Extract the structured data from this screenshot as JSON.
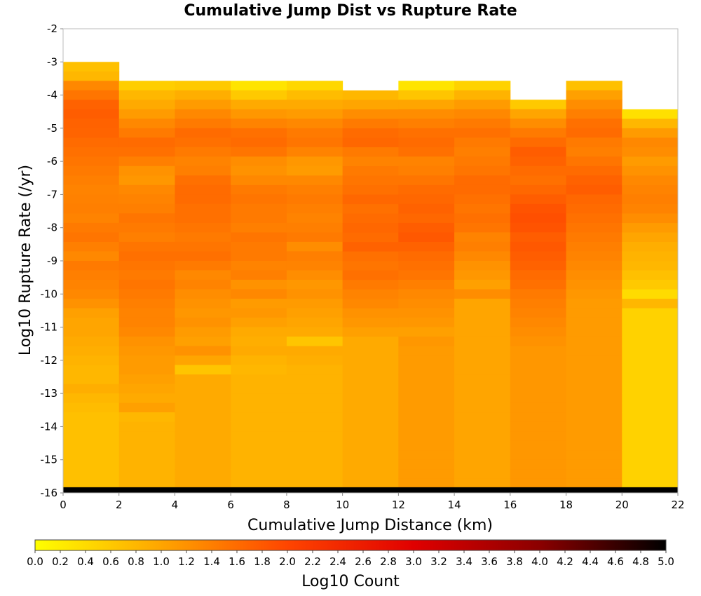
{
  "chart_data": {
    "type": "heatmap",
    "title": "Cumulative Jump Dist vs Rupture Rate",
    "xlabel": "Cumulative Jump Distance (km)",
    "ylabel": "Log10 Rupture Rate (/yr)",
    "colorbar_label": "Log10 Count",
    "xlim": [
      0,
      22
    ],
    "ylim": [
      -16,
      -2
    ],
    "x_bin_width": 2,
    "y_bin_width": 0.2857,
    "x_ticks": [
      "0",
      "2",
      "4",
      "6",
      "8",
      "10",
      "12",
      "14",
      "16",
      "18",
      "20",
      "22"
    ],
    "y_ticks": [
      "-2",
      "-3",
      "-4",
      "-5",
      "-6",
      "-7",
      "-8",
      "-9",
      "-10",
      "-11",
      "-12",
      "-13",
      "-14",
      "-15",
      "-16"
    ],
    "colorbar_ticks": [
      "0.0",
      "0.2",
      "0.4",
      "0.6",
      "0.8",
      "1.0",
      "1.2",
      "1.4",
      "1.6",
      "1.8",
      "2.0",
      "2.2",
      "2.4",
      "2.6",
      "2.8",
      "3.0",
      "3.2",
      "3.4",
      "3.6",
      "3.8",
      "4.0",
      "4.2",
      "4.4",
      "4.6",
      "4.8",
      "5.0"
    ],
    "colorbar_range": [
      0,
      5
    ],
    "colorscale": [
      "#ffff00",
      "#ffa500",
      "#ff4500",
      "#e00000",
      "#8b0000",
      "#000000"
    ],
    "grid": true,
    "columns": [
      {
        "x_start": 0,
        "top": -3.0,
        "values": [
          0.7,
          0.8,
          1.3,
          1.5,
          1.7,
          1.75,
          1.7,
          1.68,
          1.6,
          1.55,
          1.5,
          1.45,
          1.4,
          1.35,
          1.38,
          1.4,
          1.35,
          1.45,
          1.5,
          1.4,
          1.3,
          1.45,
          1.4,
          1.35,
          1.3,
          1.2,
          1.05,
          1.0,
          1.0,
          0.95,
          0.9,
          0.85,
          0.8,
          0.8,
          0.9,
          0.8,
          0.75,
          0.7,
          0.7,
          0.7,
          0.7,
          0.7,
          0.7,
          0.7,
          0.7,
          0.7
        ]
      },
      {
        "x_start": 2,
        "top": -3.57,
        "values": [
          0.55,
          0.8,
          0.95,
          1.1,
          1.3,
          1.45,
          1.6,
          1.55,
          1.4,
          1.2,
          1.15,
          1.3,
          1.35,
          1.4,
          1.5,
          1.45,
          1.4,
          1.5,
          1.55,
          1.5,
          1.45,
          1.5,
          1.45,
          1.4,
          1.35,
          1.35,
          1.3,
          1.2,
          1.15,
          1.1,
          1.1,
          1.05,
          1.0,
          0.95,
          1.05,
          0.8,
          0.85,
          0.85,
          0.85,
          0.85,
          0.85,
          0.85,
          0.85,
          0.85,
          0.85,
          0.85
        ]
      },
      {
        "x_start": 4,
        "top": -3.57,
        "values": [
          0.6,
          0.9,
          1.1,
          1.3,
          1.45,
          1.6,
          1.55,
          1.45,
          1.35,
          1.4,
          1.55,
          1.6,
          1.6,
          1.55,
          1.55,
          1.5,
          1.45,
          1.5,
          1.55,
          1.45,
          1.3,
          1.35,
          1.25,
          1.2,
          1.15,
          1.2,
          1.1,
          1.05,
          1.2,
          1.0,
          0.65,
          0.95,
          0.95,
          0.95,
          0.95,
          0.95,
          0.95,
          0.95,
          0.95,
          0.95,
          0.95,
          0.95,
          0.95,
          0.95,
          0.95,
          0.95
        ]
      },
      {
        "x_start": 6,
        "top": -3.57,
        "values": [
          0.3,
          0.6,
          0.95,
          1.15,
          1.35,
          1.55,
          1.6,
          1.5,
          1.25,
          1.2,
          1.3,
          1.45,
          1.5,
          1.45,
          1.45,
          1.4,
          1.5,
          1.45,
          1.45,
          1.35,
          1.4,
          1.2,
          1.3,
          1.1,
          1.15,
          1.05,
          0.95,
          0.9,
          0.95,
          0.85,
          0.8,
          0.85,
          0.85,
          0.85,
          0.85,
          0.85,
          0.85,
          0.85,
          0.85,
          0.85,
          0.85,
          0.85,
          0.85,
          0.85,
          0.85,
          0.85
        ]
      },
      {
        "x_start": 8,
        "top": -3.57,
        "values": [
          0.45,
          0.75,
          0.95,
          1.1,
          1.3,
          1.45,
          1.5,
          1.35,
          1.15,
          1.1,
          1.3,
          1.4,
          1.45,
          1.4,
          1.35,
          1.4,
          1.45,
          1.25,
          1.4,
          1.35,
          1.25,
          1.15,
          1.2,
          1.1,
          1.05,
          1.0,
          0.95,
          0.65,
          0.95,
          0.9,
          0.85,
          0.85,
          0.85,
          0.85,
          0.85,
          0.85,
          0.85,
          0.85,
          0.85,
          0.85,
          0.85,
          0.85,
          0.85,
          0.85,
          0.85,
          0.85
        ]
      },
      {
        "x_start": 10,
        "top": -3.86,
        "values": [
          0.8,
          1.0,
          1.25,
          1.45,
          1.6,
          1.65,
          1.45,
          1.35,
          1.45,
          1.5,
          1.55,
          1.65,
          1.55,
          1.6,
          1.65,
          1.6,
          1.7,
          1.55,
          1.5,
          1.55,
          1.45,
          1.35,
          1.3,
          1.2,
          1.15,
          1.05,
          0.95,
          0.95,
          0.95,
          0.95,
          0.95,
          0.95,
          0.95,
          0.95,
          0.95,
          0.95,
          0.95,
          0.95,
          0.95,
          0.95,
          0.95,
          0.95,
          0.95,
          0.95,
          0.95,
          0.95
        ]
      },
      {
        "x_start": 12,
        "top": -3.57,
        "values": [
          0.3,
          0.65,
          1.0,
          1.25,
          1.4,
          1.55,
          1.6,
          1.55,
          1.35,
          1.4,
          1.5,
          1.6,
          1.65,
          1.7,
          1.65,
          1.75,
          1.8,
          1.7,
          1.6,
          1.55,
          1.5,
          1.4,
          1.3,
          1.25,
          1.2,
          1.15,
          1.05,
          1.15,
          1.1,
          1.1,
          1.1,
          1.1,
          1.1,
          1.1,
          1.1,
          1.1,
          1.1,
          1.1,
          1.1,
          1.1,
          1.1,
          1.1,
          1.1,
          1.1,
          1.1,
          1.1
        ]
      },
      {
        "x_start": 14,
        "top": -3.57,
        "values": [
          0.5,
          0.85,
          1.1,
          1.3,
          1.45,
          1.55,
          1.45,
          1.4,
          1.45,
          1.5,
          1.6,
          1.6,
          1.55,
          1.5,
          1.55,
          1.5,
          1.35,
          1.4,
          1.3,
          1.2,
          1.15,
          1.05,
          1.25,
          1.0,
          1.0,
          1.0,
          1.0,
          1.0,
          1.0,
          1.0,
          1.0,
          1.0,
          1.0,
          1.0,
          1.0,
          1.0,
          1.0,
          1.0,
          1.0,
          1.0,
          1.0,
          1.0,
          1.0,
          1.0,
          1.0,
          1.0
        ]
      },
      {
        "x_start": 16,
        "top": -4.14,
        "values": [
          0.6,
          1.0,
          1.25,
          1.45,
          1.6,
          1.75,
          1.7,
          1.6,
          1.55,
          1.65,
          1.75,
          1.85,
          1.9,
          1.85,
          1.75,
          1.8,
          1.75,
          1.7,
          1.6,
          1.55,
          1.45,
          1.4,
          1.35,
          1.3,
          1.25,
          1.2,
          1.15,
          1.15,
          1.15,
          1.15,
          1.15,
          1.15,
          1.15,
          1.15,
          1.15,
          1.15,
          1.15,
          1.15,
          1.15,
          1.15,
          1.15,
          1.15,
          1.15,
          1.15,
          1.15,
          1.15
        ]
      },
      {
        "x_start": 18,
        "top": -3.57,
        "values": [
          0.7,
          1.05,
          1.25,
          1.4,
          1.55,
          1.6,
          1.45,
          1.4,
          1.5,
          1.6,
          1.7,
          1.75,
          1.65,
          1.6,
          1.55,
          1.5,
          1.45,
          1.4,
          1.35,
          1.3,
          1.25,
          1.2,
          1.15,
          1.1,
          1.1,
          1.1,
          1.1,
          1.1,
          1.1,
          1.1,
          1.1,
          1.1,
          1.1,
          1.1,
          1.1,
          1.1,
          1.1,
          1.1,
          1.1,
          1.1,
          1.1,
          1.1,
          1.1,
          1.1,
          1.1,
          1.1
        ]
      },
      {
        "x_start": 20,
        "top": -4.43,
        "values": [
          0.35,
          0.8,
          1.1,
          1.3,
          1.25,
          1.1,
          1.2,
          1.3,
          1.35,
          1.4,
          1.35,
          1.25,
          1.1,
          1.0,
          0.9,
          0.85,
          0.8,
          0.7,
          0.6,
          0.4,
          0.8,
          0.5,
          0.5,
          0.5,
          0.5,
          0.5,
          0.5,
          0.5,
          0.5,
          0.5,
          0.5,
          0.5,
          0.5,
          0.5,
          0.5,
          0.5,
          0.5,
          0.5,
          0.5,
          0.5,
          0.5,
          0.5,
          0.5,
          0.5,
          0.5,
          0.5
        ]
      }
    ],
    "bottom_row": {
      "y_start": -16,
      "value": 5.0
    }
  }
}
